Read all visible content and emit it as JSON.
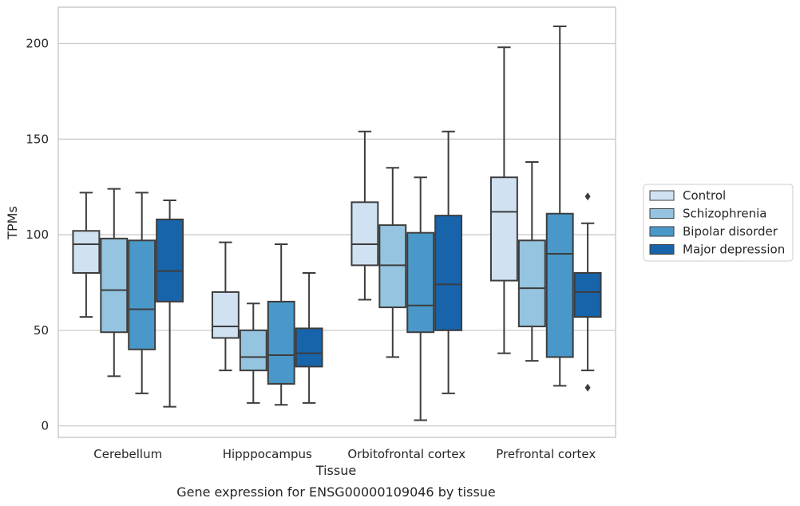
{
  "chart_data": {
    "type": "box",
    "title": "Gene expression for ENSG00000109046 by tissue",
    "xlabel": "Tissue",
    "ylabel": "TPMs",
    "ylim": [
      -6,
      219
    ],
    "yticks": [
      0,
      50,
      100,
      150,
      200
    ],
    "grid": "horizontal",
    "legend_position": "right",
    "categories": [
      "Cerebellum",
      "Hipppocampus",
      "Orbitofrontal cortex",
      "Prefrontal cortex"
    ],
    "series": [
      {
        "name": "Control",
        "color": "#d0e1f2",
        "boxes": [
          {
            "whisker_low": 57,
            "q1": 80,
            "median": 95,
            "q3": 102,
            "whisker_high": 122,
            "outliers": []
          },
          {
            "whisker_low": 29,
            "q1": 46,
            "median": 52,
            "q3": 70,
            "whisker_high": 96,
            "outliers": []
          },
          {
            "whisker_low": 66,
            "q1": 84,
            "median": 95,
            "q3": 117,
            "whisker_high": 154,
            "outliers": []
          },
          {
            "whisker_low": 38,
            "q1": 76,
            "median": 112,
            "q3": 130,
            "whisker_high": 198,
            "outliers": []
          }
        ]
      },
      {
        "name": "Schizophrenia",
        "color": "#94c4df",
        "boxes": [
          {
            "whisker_low": 26,
            "q1": 49,
            "median": 71,
            "q3": 98,
            "whisker_high": 124,
            "outliers": []
          },
          {
            "whisker_low": 12,
            "q1": 29,
            "median": 36,
            "q3": 50,
            "whisker_high": 64,
            "outliers": []
          },
          {
            "whisker_low": 36,
            "q1": 62,
            "median": 84,
            "q3": 105,
            "whisker_high": 135,
            "outliers": []
          },
          {
            "whisker_low": 34,
            "q1": 52,
            "median": 72,
            "q3": 97,
            "whisker_high": 138,
            "outliers": []
          }
        ]
      },
      {
        "name": "Bipolar disorder",
        "color": "#4a98c9",
        "boxes": [
          {
            "whisker_low": 17,
            "q1": 40,
            "median": 61,
            "q3": 97,
            "whisker_high": 122,
            "outliers": []
          },
          {
            "whisker_low": 11,
            "q1": 22,
            "median": 37,
            "q3": 65,
            "whisker_high": 95,
            "outliers": []
          },
          {
            "whisker_low": 3,
            "q1": 49,
            "median": 63,
            "q3": 101,
            "whisker_high": 130,
            "outliers": []
          },
          {
            "whisker_low": 21,
            "q1": 36,
            "median": 90,
            "q3": 111,
            "whisker_high": 209,
            "outliers": []
          }
        ]
      },
      {
        "name": "Major depression",
        "color": "#1764ab",
        "boxes": [
          {
            "whisker_low": 10,
            "q1": 65,
            "median": 81,
            "q3": 108,
            "whisker_high": 118,
            "outliers": []
          },
          {
            "whisker_low": 12,
            "q1": 31,
            "median": 38,
            "q3": 51,
            "whisker_high": 80,
            "outliers": []
          },
          {
            "whisker_low": 17,
            "q1": 50,
            "median": 74,
            "q3": 110,
            "whisker_high": 154,
            "outliers": []
          },
          {
            "whisker_low": 29,
            "q1": 57,
            "median": 70,
            "q3": 80,
            "whisker_high": 106,
            "outliers": [
              120,
              20
            ]
          }
        ]
      }
    ]
  }
}
